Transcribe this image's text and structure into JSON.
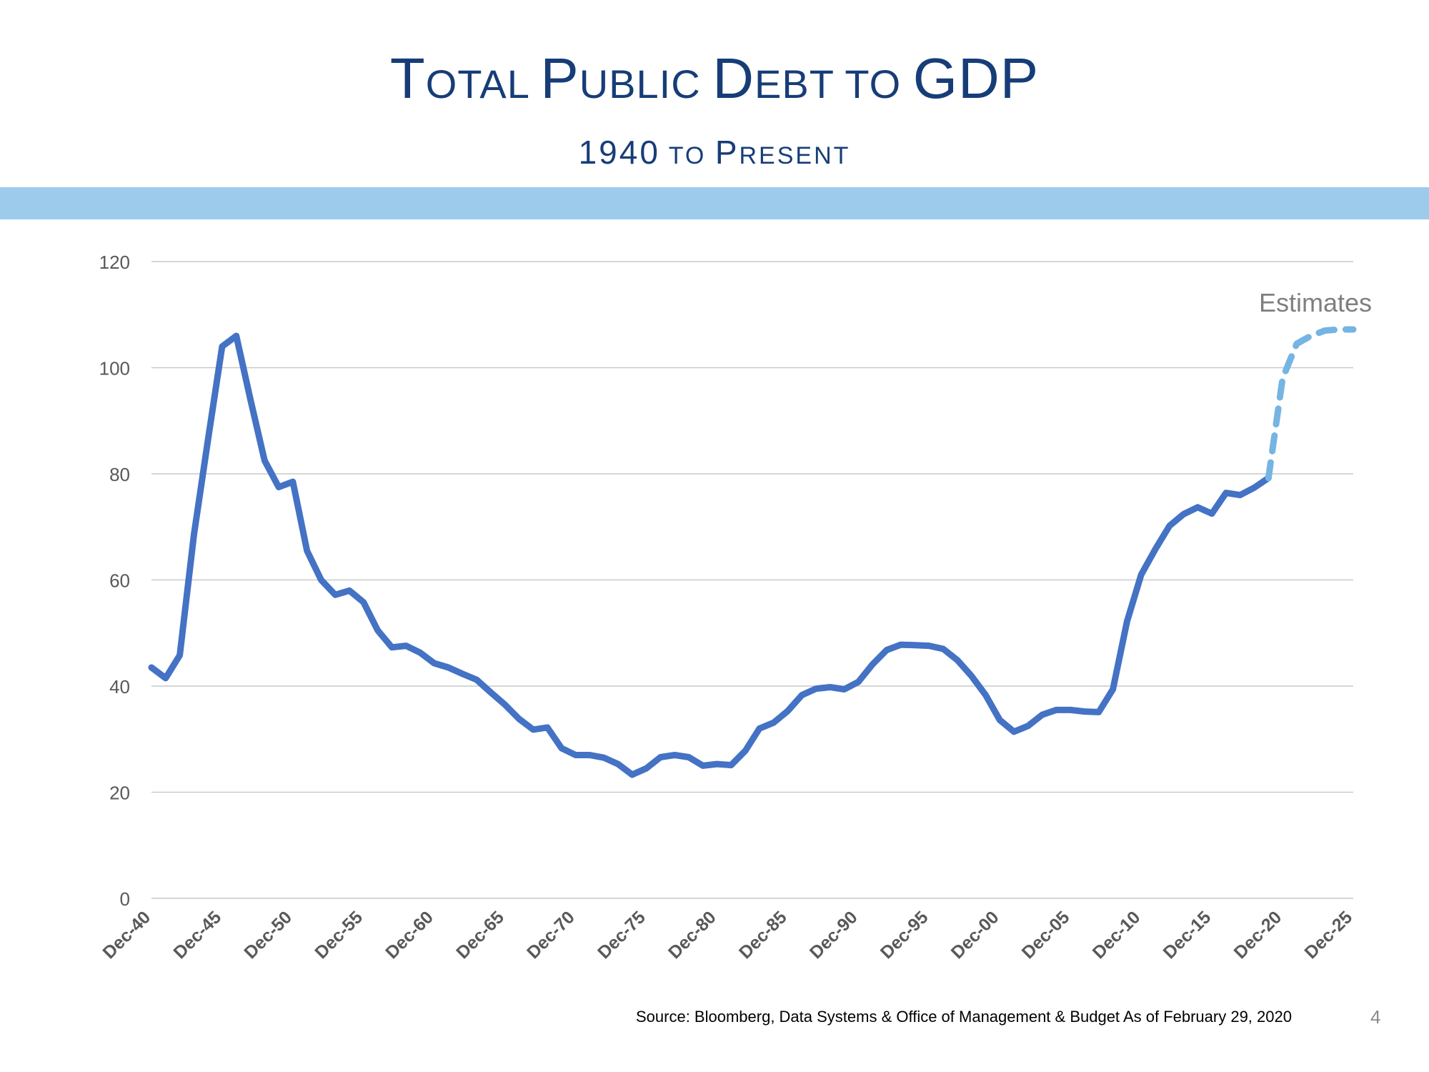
{
  "header": {
    "title_parts": [
      {
        "cap": "T",
        "rest": "OTAL "
      },
      {
        "cap": "P",
        "rest": "UBLIC "
      },
      {
        "cap": "D",
        "rest": "EBT TO "
      },
      {
        "cap": "GDP",
        "rest": ""
      }
    ],
    "subtitle_parts": [
      {
        "cap": "1940",
        "rest": " TO "
      },
      {
        "cap": "P",
        "rest": "RESENT"
      }
    ]
  },
  "chart_data": {
    "type": "line",
    "title": "TOTAL PUBLIC DEBT TO GDP",
    "subtitle": "1940 TO PRESENT",
    "xlabel": "",
    "ylabel": "",
    "ylim": [
      0,
      120
    ],
    "yticks": [
      0,
      20,
      40,
      60,
      80,
      100,
      120
    ],
    "xlim": [
      1940,
      2025
    ],
    "xticks": [
      1940,
      1945,
      1950,
      1955,
      1960,
      1965,
      1970,
      1975,
      1980,
      1985,
      1990,
      1995,
      2000,
      2005,
      2010,
      2015,
      2020,
      2025
    ],
    "xtick_labels": [
      "Dec-40",
      "Dec-45",
      "Dec-50",
      "Dec-55",
      "Dec-60",
      "Dec-65",
      "Dec-70",
      "Dec-75",
      "Dec-80",
      "Dec-85",
      "Dec-90",
      "Dec-95",
      "Dec-00",
      "Dec-05",
      "Dec-10",
      "Dec-15",
      "Dec-20",
      "Dec-25"
    ],
    "grid": true,
    "series": [
      {
        "style": "solid",
        "color": "#4472c4",
        "x": [
          1940,
          1941,
          1942,
          1943,
          1944,
          1945,
          1946,
          1947,
          1948,
          1949,
          1950,
          1951,
          1952,
          1953,
          1954,
          1955,
          1956,
          1957,
          1958,
          1959,
          1960,
          1961,
          1962,
          1963,
          1964,
          1965,
          1966,
          1967,
          1968,
          1969,
          1970,
          1971,
          1972,
          1973,
          1974,
          1975,
          1976,
          1977,
          1978,
          1979,
          1980,
          1981,
          1982,
          1983,
          1984,
          1985,
          1986,
          1987,
          1988,
          1989,
          1990,
          1991,
          1992,
          1993,
          1994,
          1995,
          1996,
          1997,
          1998,
          1999,
          2000,
          2001,
          2002,
          2003,
          2004,
          2005,
          2006,
          2007,
          2008,
          2009,
          2010,
          2011,
          2012,
          2013,
          2014,
          2015,
          2016,
          2017,
          2018,
          2019
        ],
        "y": [
          43.5,
          41.5,
          45.8,
          68.5,
          86.5,
          104,
          106,
          94,
          82.5,
          77.5,
          78.5,
          65.5,
          60,
          57.2,
          58,
          55.8,
          50.5,
          47.3,
          47.6,
          46.3,
          44.3,
          43.5,
          42.3,
          41.2,
          38.8,
          36.5,
          33.8,
          31.8,
          32.2,
          28.3,
          27,
          27,
          26.5,
          25.3,
          23.3,
          24.5,
          26.6,
          27,
          26.6,
          25,
          25.3,
          25.1,
          27.8,
          32,
          33.1,
          35.3,
          38.3,
          39.5,
          39.8,
          39.4,
          40.8,
          44.1,
          46.8,
          47.8,
          47.7,
          47.6,
          47,
          44.9,
          41.9,
          38.3,
          33.6,
          31.4,
          32.5,
          34.6,
          35.5,
          35.5,
          35.2,
          35.1,
          39.4,
          52.2,
          61,
          65.8,
          70.2,
          72.4,
          73.7,
          72.5,
          76.4,
          76,
          77.4,
          79.2
        ]
      },
      {
        "name": "Estimates",
        "style": "dashed",
        "color": "#75b4e3",
        "x": [
          2019,
          2020,
          2021,
          2022,
          2023,
          2024,
          2025
        ],
        "y": [
          79.2,
          98,
          104.5,
          106,
          107,
          107.2,
          107.2
        ]
      }
    ],
    "annotations": [
      {
        "text": "Estimates"
      }
    ]
  },
  "footer": {
    "source": "Source:  Bloomberg, Data Systems & Office of Management & Budget As of February 29, 2020",
    "page_number": "4"
  }
}
